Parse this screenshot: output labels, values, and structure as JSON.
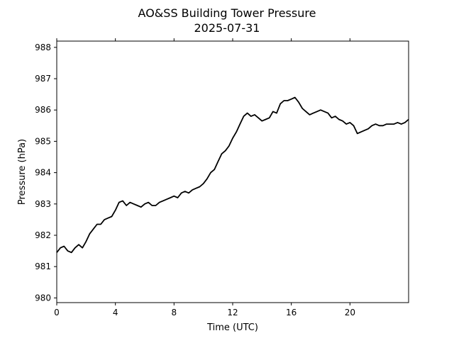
{
  "chart_data": {
    "type": "line",
    "title": "AO&SS Building Tower Pressure",
    "subtitle": "2025-07-31",
    "xlabel": "Time (UTC)",
    "ylabel": "Pressure (hPa)",
    "xlim": [
      0,
      24
    ],
    "ylim": [
      979.85,
      988.2
    ],
    "xticks": [
      0,
      4,
      8,
      12,
      16,
      20
    ],
    "yticks": [
      980,
      981,
      982,
      983,
      984,
      985,
      986,
      987,
      988
    ],
    "grid": false,
    "legend": "none",
    "line_color": "#000000",
    "series": [
      {
        "x": [
          0,
          0.25,
          0.5,
          0.75,
          1.0,
          1.25,
          1.5,
          1.75,
          2.0,
          2.25,
          2.5,
          2.75,
          3.0,
          3.25,
          3.5,
          3.75,
          4.0,
          4.25,
          4.5,
          4.75,
          5.0,
          5.25,
          5.5,
          5.75,
          6.0,
          6.25,
          6.5,
          6.75,
          7.0,
          7.25,
          7.5,
          7.75,
          8.0,
          8.25,
          8.5,
          8.75,
          9.0,
          9.25,
          9.5,
          9.75,
          10.0,
          10.25,
          10.5,
          10.75,
          11.0,
          11.25,
          11.5,
          11.75,
          12.0,
          12.25,
          12.5,
          12.75,
          13.0,
          13.25,
          13.5,
          13.75,
          14.0,
          14.25,
          14.5,
          14.75,
          15.0,
          15.25,
          15.5,
          15.75,
          16.0,
          16.25,
          16.5,
          16.75,
          17.0,
          17.25,
          17.5,
          17.75,
          18.0,
          18.25,
          18.5,
          18.75,
          19.0,
          19.25,
          19.5,
          19.75,
          20.0,
          20.25,
          20.5,
          20.75,
          21.0,
          21.25,
          21.5,
          21.75,
          22.0,
          22.25,
          22.5,
          22.75,
          23.0,
          23.25,
          23.5,
          23.75,
          24.0
        ],
        "values": [
          981.45,
          981.6,
          981.65,
          981.5,
          981.45,
          981.6,
          981.7,
          981.6,
          981.8,
          982.05,
          982.2,
          982.35,
          982.35,
          982.5,
          982.55,
          982.6,
          982.8,
          983.05,
          983.1,
          982.95,
          983.05,
          983.0,
          982.95,
          982.9,
          983.0,
          983.05,
          982.95,
          982.95,
          983.05,
          983.1,
          983.15,
          983.2,
          983.25,
          983.2,
          983.35,
          983.4,
          983.35,
          983.45,
          983.5,
          983.55,
          983.65,
          983.8,
          984.0,
          984.1,
          984.35,
          984.6,
          984.7,
          984.85,
          985.1,
          985.3,
          985.55,
          985.8,
          985.9,
          985.8,
          985.85,
          985.75,
          985.65,
          985.7,
          985.75,
          985.95,
          985.9,
          986.2,
          986.3,
          986.3,
          986.35,
          986.4,
          986.25,
          986.05,
          985.95,
          985.85,
          985.9,
          985.95,
          986.0,
          985.95,
          985.9,
          985.75,
          985.8,
          985.7,
          985.65,
          985.55,
          985.6,
          985.5,
          985.25,
          985.3,
          985.35,
          985.4,
          985.5,
          985.55,
          985.5,
          985.5,
          985.55,
          985.55,
          985.55,
          985.6,
          985.55,
          985.6,
          985.7
        ]
      }
    ]
  }
}
